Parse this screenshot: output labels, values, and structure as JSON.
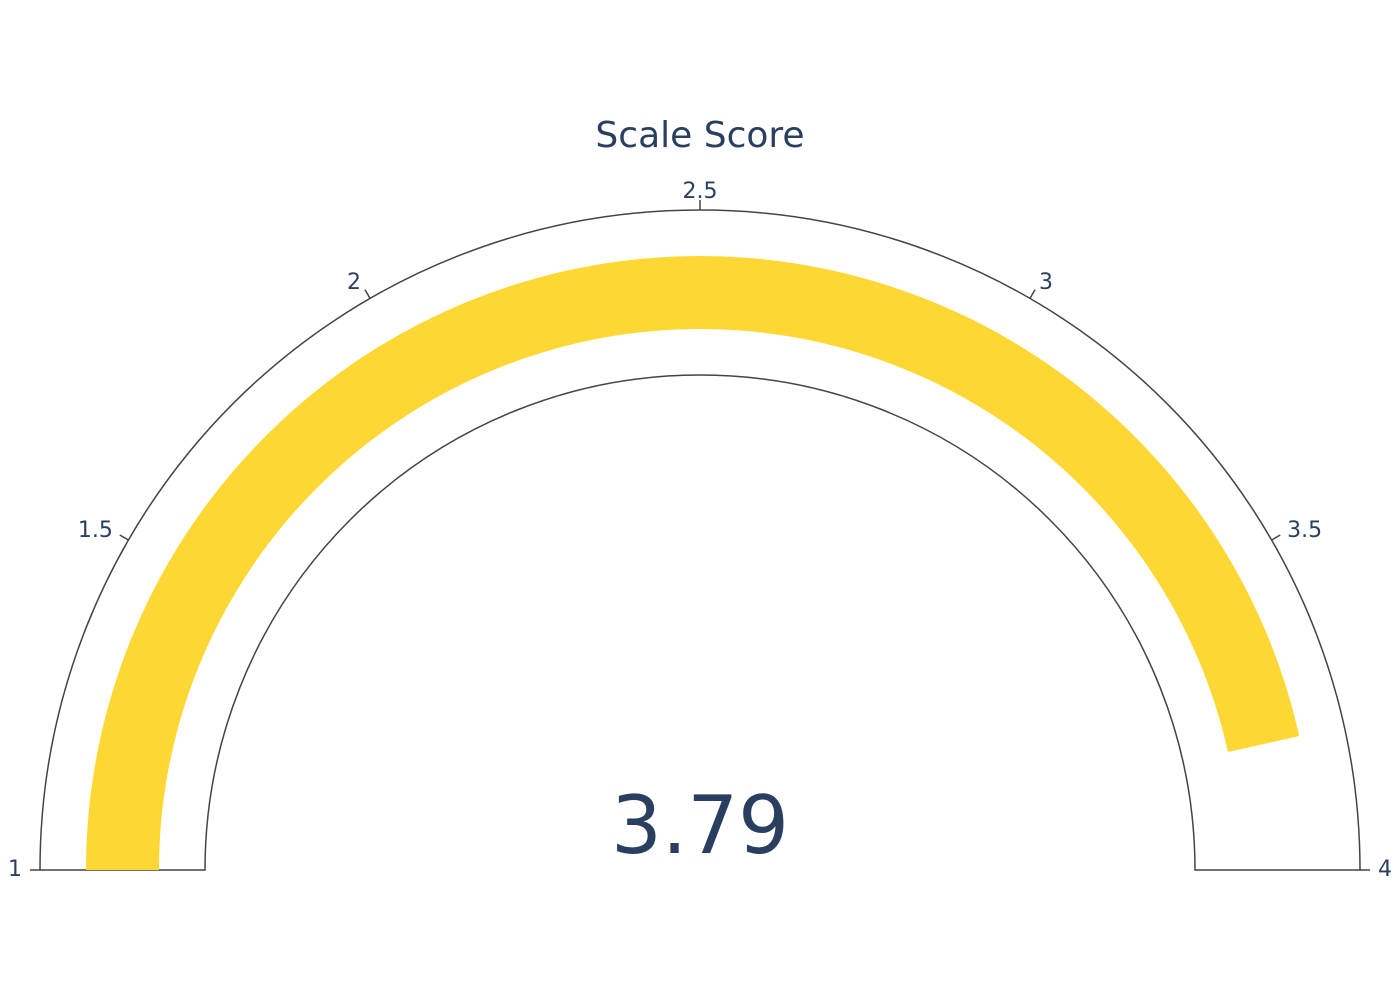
{
  "chart_data": {
    "type": "gauge",
    "title": "Scale Score",
    "value": 3.79,
    "value_label": "3.79",
    "range": [
      1,
      4
    ],
    "ticks": [
      {
        "value": 1,
        "label": "1"
      },
      {
        "value": 1.5,
        "label": "1.5"
      },
      {
        "value": 2,
        "label": "2"
      },
      {
        "value": 2.5,
        "label": "2.5"
      },
      {
        "value": 3,
        "label": "3"
      },
      {
        "value": 3.5,
        "label": "3.5"
      },
      {
        "value": 4,
        "label": "4"
      }
    ],
    "bar_color": "#fdd835",
    "outline_color": "#444444",
    "text_color": "#2a3f5f"
  }
}
